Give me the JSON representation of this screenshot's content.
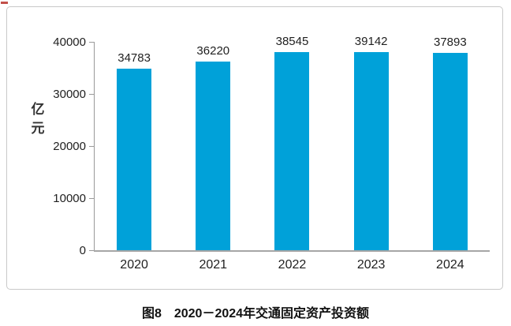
{
  "page": {
    "caption": "图8　2020－2024年交通固定资产投资额"
  },
  "colors": {
    "bar": "#00A1D9",
    "axis": "#9A9A9A",
    "frame_border": "#C9C9C9",
    "text": "#1F1F1F",
    "red_mark": "#C2514A"
  },
  "chart_data": {
    "type": "bar",
    "title": "图8　2020－2024年交通固定资产投资额",
    "unit_label": "亿元",
    "categories": [
      "2020",
      "2021",
      "2022",
      "2023",
      "2024"
    ],
    "values": [
      34783,
      36220,
      38545,
      39142,
      37893
    ],
    "value_labels": [
      "34783",
      "36220",
      "38545",
      "39142",
      "37893"
    ],
    "y_ticks": [
      0,
      10000,
      20000,
      30000,
      40000
    ],
    "ylim": [
      0,
      40000
    ],
    "xlabel": "",
    "ylabel": "亿元",
    "grid": false,
    "legend": false,
    "bar_color": "#00A1D9"
  }
}
